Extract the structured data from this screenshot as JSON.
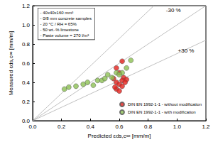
{
  "chart_data": {
    "type": "scatter",
    "x_label": "Predicted εds,c∞ [mm/m]",
    "y_label": "Measured εds,c∞ [mm/m]",
    "xlim": [
      0,
      1.2
    ],
    "ylim": [
      0,
      1.2
    ],
    "xticks": [
      {
        "value": 0,
        "label": "0.0"
      },
      0.2,
      0.4,
      0.6,
      0.8,
      {
        "value": 1,
        "label": "1.0"
      },
      1.2
    ],
    "yticks": [
      {
        "value": 0,
        "label": "0.0"
      },
      0.2,
      0.4,
      0.6,
      0.8,
      {
        "value": 1,
        "label": "1.0"
      },
      1.2
    ],
    "grid": false,
    "legend": "lower right",
    "annotation": [
      "- 40x40x160 mm³",
      "- 0/8 mm concrete samples",
      "- 20 °C / RH = 65%",
      "- 50 wt.-% limestone",
      "- Paste volume = 270 l/m³"
    ],
    "reference_lines": [
      {
        "x": [
          0,
          0.84
        ],
        "y": [
          0,
          1.2
        ],
        "label": "-30 %"
      },
      {
        "x": [
          0,
          1.2
        ],
        "y": [
          0,
          1.2
        ]
      },
      {
        "x": [
          0,
          1.2
        ],
        "y": [
          0,
          0.84
        ],
        "label": "+30 %"
      }
    ],
    "series": [
      {
        "name": "DIN EN 1992-1-1 - without modification",
        "color": "#e3201b",
        "marker": "circle",
        "x": [
          0.62,
          0.58,
          0.6,
          0.63,
          0.62,
          0.65,
          0.58,
          0.6,
          0.62,
          0.58,
          0.6,
          0.57,
          0.64,
          0.56
        ],
        "values": [
          0.62,
          0.55,
          0.5,
          0.45,
          0.42,
          0.43,
          0.4,
          0.38,
          0.36,
          0.33,
          0.31,
          0.35,
          0.4,
          0.44
        ]
      },
      {
        "name": "DIN EN 1992-1-1 - with modification",
        "color": "#8cc152",
        "marker": "circle",
        "x": [
          0.22,
          0.25,
          0.3,
          0.35,
          0.38,
          0.42,
          0.45,
          0.48,
          0.5,
          0.55,
          0.58,
          0.62,
          0.65,
          0.68,
          0.6,
          0.52
        ],
        "values": [
          0.33,
          0.35,
          0.36,
          0.38,
          0.4,
          0.37,
          0.42,
          0.42,
          0.44,
          0.45,
          0.5,
          0.5,
          0.55,
          0.63,
          0.48,
          0.48
        ]
      }
    ]
  }
}
